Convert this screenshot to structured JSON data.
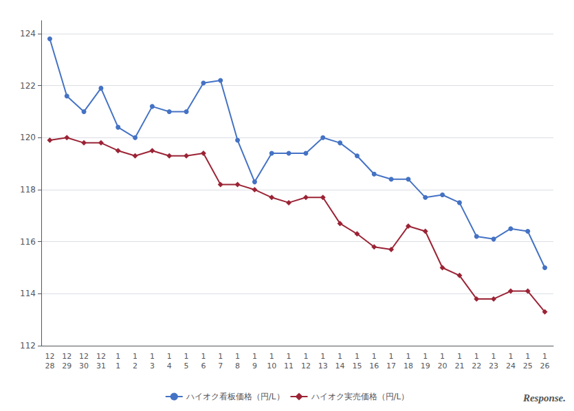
{
  "chart_data": {
    "type": "line",
    "categories": [
      "12\n28",
      "12\n29",
      "12\n30",
      "12\n31",
      "1\n1",
      "1\n2",
      "1\n3",
      "1\n4",
      "1\n5",
      "1\n6",
      "1\n7",
      "1\n8",
      "1\n9",
      "1\n10",
      "1\n11",
      "1\n12",
      "1\n13",
      "1\n14",
      "1\n15",
      "1\n16",
      "1\n17",
      "1\n18",
      "1\n19",
      "1\n20",
      "1\n21",
      "1\n22",
      "1\n23",
      "1\n24",
      "1\n25",
      "1\n26"
    ],
    "series": [
      {
        "name": "ハイオク看板価格（円/L）",
        "color": "#4472c4",
        "marker": "circle",
        "values": [
          123.8,
          121.6,
          121.0,
          121.9,
          120.4,
          120.0,
          121.2,
          121.0,
          121.0,
          122.1,
          122.2,
          119.9,
          118.3,
          119.4,
          119.4,
          119.4,
          120.0,
          119.8,
          119.3,
          118.6,
          118.4,
          118.4,
          117.7,
          117.8,
          117.5,
          116.2,
          116.1,
          116.5,
          116.4,
          115.0
        ]
      },
      {
        "name": "ハイオク実売価格（円/L）",
        "color": "#9b2335",
        "marker": "diamond",
        "values": [
          119.9,
          120.0,
          119.8,
          119.8,
          119.5,
          119.3,
          119.5,
          119.3,
          119.3,
          119.4,
          118.2,
          118.2,
          118.0,
          117.7,
          117.5,
          117.7,
          117.7,
          116.7,
          116.3,
          115.8,
          115.7,
          116.6,
          116.4,
          115.0,
          114.7,
          113.8,
          113.8,
          114.1,
          114.1,
          113.3
        ]
      }
    ],
    "ylim": [
      112,
      124.5
    ],
    "yticks": [
      112,
      114,
      116,
      118,
      120,
      122,
      124
    ],
    "grid": true,
    "legend": "bottom",
    "annotation": "Response."
  }
}
